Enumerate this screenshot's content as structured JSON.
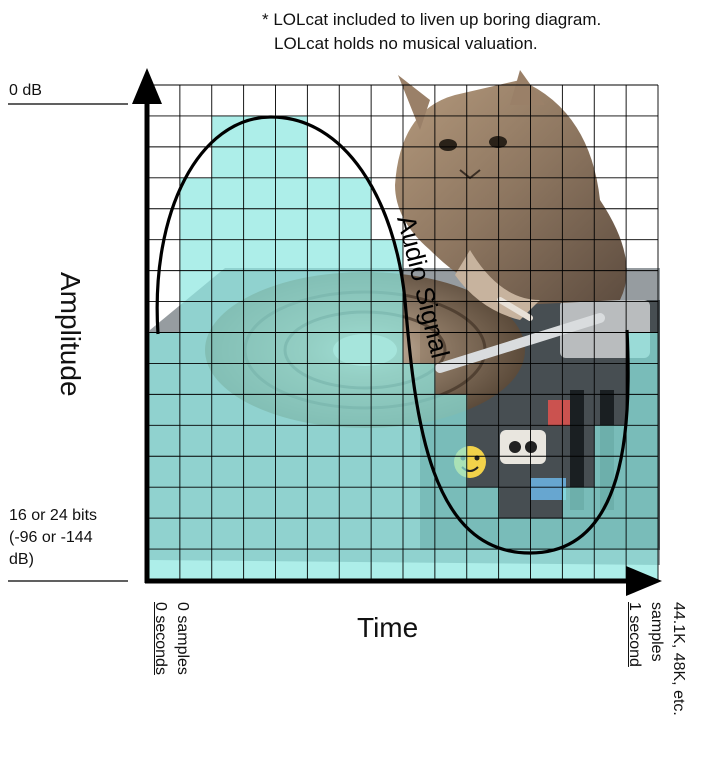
{
  "note": {
    "line1": "* LOLcat included to liven up boring diagram.",
    "line2": "LOLcat holds no musical valuation."
  },
  "y_axis": {
    "title": "Amplitude",
    "top_label": "0 dB",
    "bottom_label_lines": [
      "16 or 24 bits",
      "(-96 or -144",
      "dB)"
    ]
  },
  "x_axis": {
    "title": "Time",
    "start_label_lines": [
      "0 samples",
      "0 seconds"
    ],
    "end_label_lines": [
      "44.1K, 48K, etc.",
      "samples",
      "1 second"
    ]
  },
  "signal": {
    "label": "Audio Signal",
    "stroke_color": "#000000"
  },
  "colors": {
    "sample_fill": "#8ee8e1",
    "grid": "#000000",
    "axis": "#000000"
  },
  "illustration": {
    "subject": "cat-dj-turntable-photo"
  }
}
